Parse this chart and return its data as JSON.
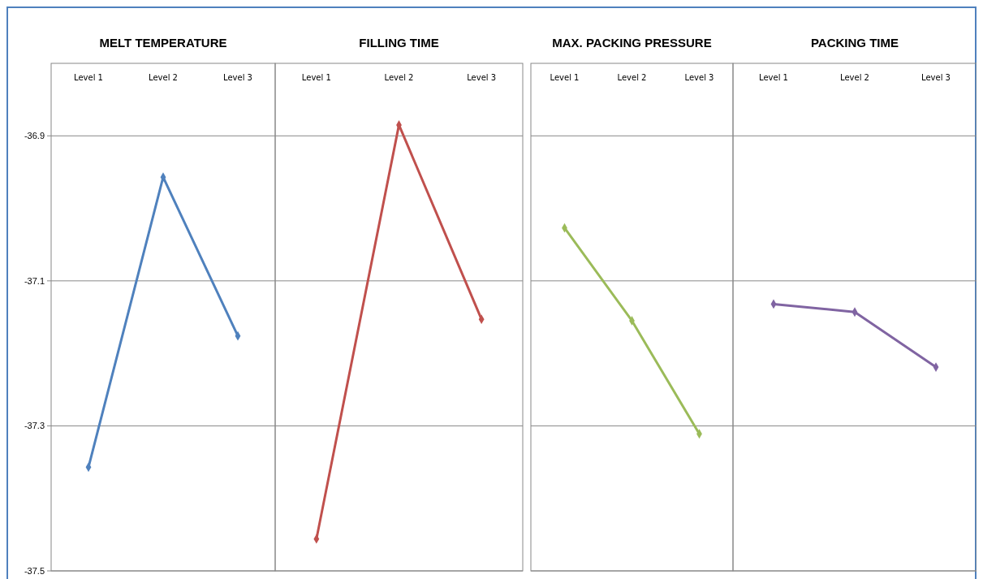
{
  "chart_data": [
    {
      "type": "line",
      "title": "MELT TEMPERATURE",
      "categories": [
        "Level 1",
        "Level 2",
        "Level 3"
      ],
      "values": [
        -37.357,
        -36.957,
        -37.176
      ],
      "color": "#4f81bd",
      "ylim": [
        -37.5,
        -36.8
      ],
      "yticks": [
        -37.5,
        -37.3,
        -37.1,
        -36.9
      ],
      "grid": "y",
      "marker": "diamond"
    },
    {
      "type": "line",
      "title": "FILLING TIME",
      "categories": [
        "Level 1",
        "Level 2",
        "Level 3"
      ],
      "values": [
        -37.456,
        -36.885,
        -37.153
      ],
      "color": "#c0504d",
      "ylim": [
        -37.5,
        -36.8
      ],
      "yticks": [
        -37.5,
        -37.3,
        -37.1,
        -36.9
      ],
      "grid": "y",
      "marker": "diamond",
      "tick_labels": "x"
    },
    {
      "type": "line",
      "title": "MAX. PACKING PRESSURE",
      "categories": [
        "Level 1",
        "Level 2",
        "Level 3"
      ],
      "values": [
        -37.027,
        -37.155,
        -37.311
      ],
      "color": "#9bbb59",
      "ylim": [
        -37.5,
        -36.8
      ],
      "yticks": [
        -37.5,
        -37.3,
        -37.1,
        -36.9
      ],
      "grid": "y",
      "marker": "diamond",
      "tick_labels": "x"
    },
    {
      "type": "line",
      "title": "PACKING TIME",
      "categories": [
        "Level 1",
        "Level 2",
        "Level 3"
      ],
      "values": [
        -37.132,
        -37.143,
        -37.219
      ],
      "color": "#8064a2",
      "ylim": [
        -37.5,
        -36.8
      ],
      "yticks": [
        -37.5,
        -37.3,
        -37.1,
        -36.9
      ],
      "grid": "y",
      "marker": "diamond",
      "tick_labels": "x"
    }
  ]
}
